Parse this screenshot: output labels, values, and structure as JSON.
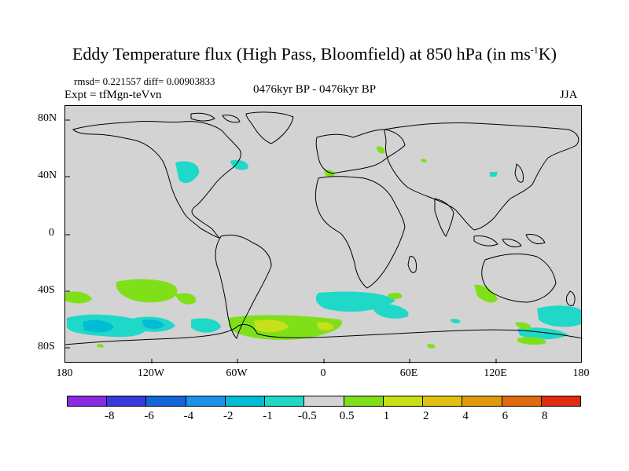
{
  "title": {
    "main": "Eddy Temperature flux (High Pass, Bloomfield) at 850 hPa (in ms",
    "sup": "-1",
    "tail": "K)"
  },
  "stats": "rmsd= 0.221557  diff= 0.00903833",
  "expt": "Expt = tfMgn-teVvn",
  "period": "0476kyr BP - 0476kyr BP",
  "season": "JJA",
  "axes": {
    "lat_labels": [
      "80N",
      "40N",
      "0",
      "40S",
      "80S"
    ],
    "lon_labels": [
      "180",
      "120W",
      "60W",
      "0",
      "60E",
      "120E",
      "180"
    ]
  },
  "colorbar": {
    "colors": [
      "#8a2be2",
      "#3a3ae0",
      "#1565d8",
      "#1e90e8",
      "#00bcd4",
      "#20d8c8",
      "#d3d3d3",
      "#7fe01a",
      "#c8e017",
      "#e0c010",
      "#e09a10",
      "#e06a10",
      "#e02b10"
    ],
    "labels": [
      "-8",
      "-6",
      "-4",
      "-2",
      "-1",
      "-0.5",
      "0.5",
      "1",
      "2",
      "4",
      "6",
      "8"
    ]
  },
  "colors": {
    "ocean_land_background": "#d3d3d3",
    "positive_1": "#7fe01a",
    "positive_2": "#c8e017",
    "negative_1": "#20d8c8",
    "negative_2": "#00bcd4"
  }
}
